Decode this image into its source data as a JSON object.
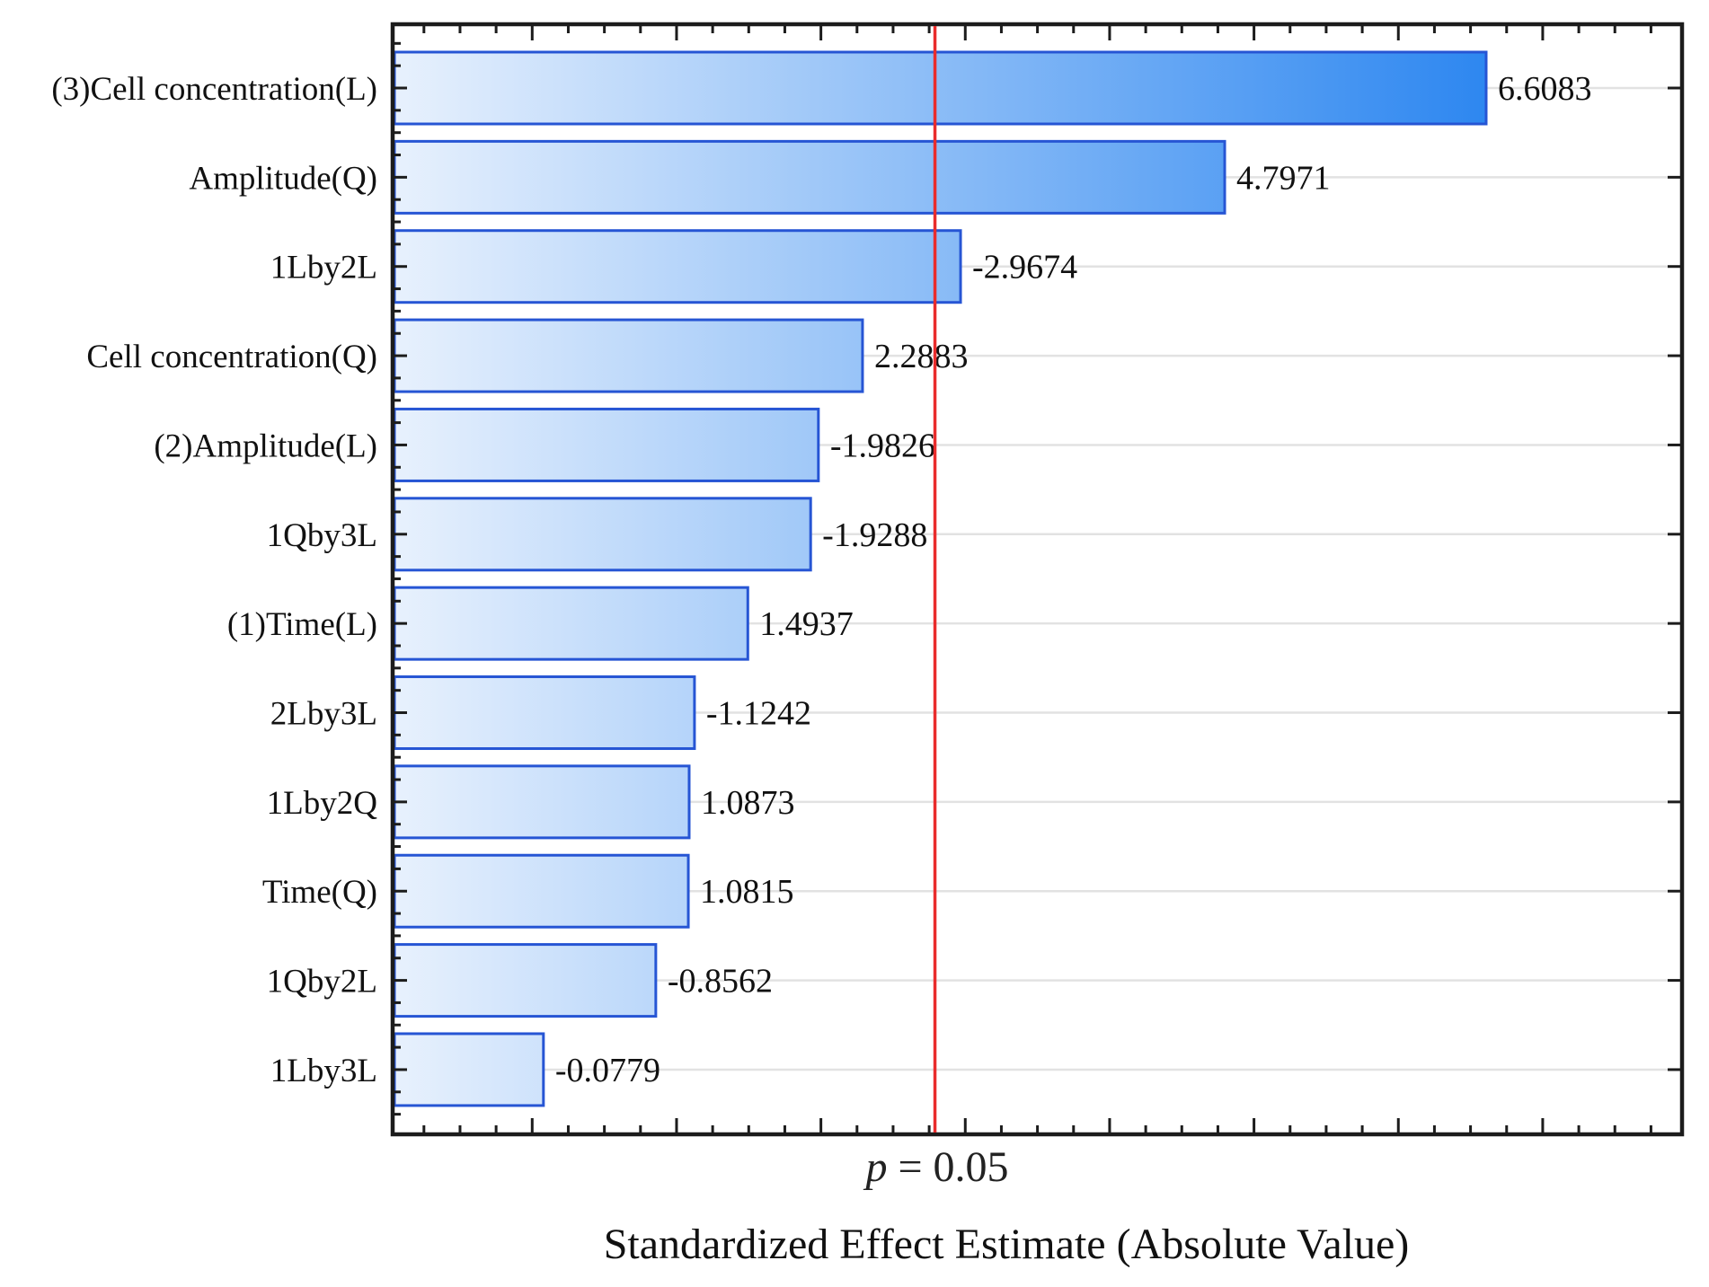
{
  "chart_data": {
    "type": "bar",
    "orientation": "horizontal",
    "title": "",
    "xlabel": "Standardized Effect Estimate (Absolute Value)",
    "ylabel": "",
    "categories": [
      "(3)Cell concentration(L)",
      "Amplitude(Q)",
      "1Lby2L",
      "Cell concentration(Q)",
      "(2)Amplitude(L)",
      "1Qby3L",
      "(1)Time(L)",
      "2Lby3L",
      "1Lby2Q",
      "Time(Q)",
      "1Qby2L",
      "1Lby3L"
    ],
    "values": [
      6.6083,
      4.7971,
      -2.9674,
      2.2883,
      -1.9826,
      -1.9288,
      1.4937,
      -1.1242,
      1.0873,
      1.0815,
      -0.8562,
      -0.0779
    ],
    "value_labels": [
      "6.6083",
      "4.7971",
      "-2.9674",
      "2.2883",
      "-1.9826",
      "-1.9288",
      "1.4937",
      "-1.1242",
      "1.0873",
      "1.0815",
      "-0.8562",
      "-0.0779"
    ],
    "bars_plotted_as": "absolute value",
    "significance_line": {
      "label_var": "p",
      "label_rest": " = 0.05",
      "value_abs": 2.79,
      "color": "#e92c2c"
    },
    "xlim": [
      -0.97,
      7.97
    ],
    "x_major_tick_step": 1,
    "x_minor_tick_step": 0.25,
    "x_tick_numbers_shown": false,
    "grid": "horizontal line at each bar center",
    "legend": "none"
  },
  "colors": {
    "bar_border": "#2655d4",
    "bar_gradient_start": "#e8f1fd",
    "bar_gradient_end": "#0c74ee",
    "grid_line": "#e2e2e2",
    "frame": "#1c1c1c",
    "tick": "#1c1c1c",
    "text": "#111111",
    "significance_line": "#e92c2c",
    "background": "#ffffff"
  }
}
